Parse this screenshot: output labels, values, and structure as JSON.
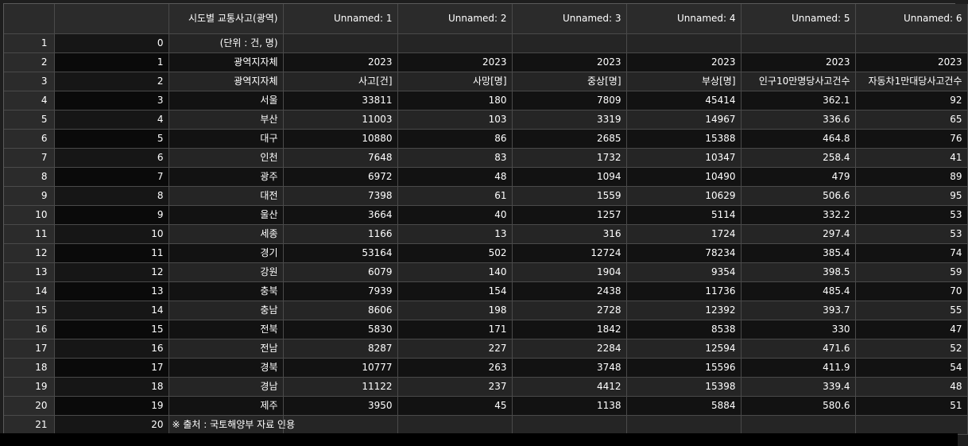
{
  "table": {
    "columns": [
      "",
      "시도별 교통사고(광역)",
      "Unnamed: 1",
      "Unnamed: 2",
      "Unnamed: 3",
      "Unnamed: 4",
      "Unnamed: 5",
      "Unnamed: 6"
    ],
    "rows": [
      {
        "num": "1",
        "cells": [
          "0",
          "(단위 : 건, 명)",
          "",
          "",
          "",
          "",
          "",
          ""
        ]
      },
      {
        "num": "2",
        "cells": [
          "1",
          "광역지자체",
          "2023",
          "2023",
          "2023",
          "2023",
          "2023",
          "2023"
        ]
      },
      {
        "num": "3",
        "cells": [
          "2",
          "광역지자체",
          "사고[건]",
          "사망[명]",
          "중상[명]",
          "부상[명]",
          "인구10만명당사고건수",
          "자동차1만대당사고건수"
        ]
      },
      {
        "num": "4",
        "cells": [
          "3",
          "서울",
          "33811",
          "180",
          "7809",
          "45414",
          "362.1",
          "92"
        ]
      },
      {
        "num": "5",
        "cells": [
          "4",
          "부산",
          "11003",
          "103",
          "3319",
          "14967",
          "336.6",
          "65"
        ]
      },
      {
        "num": "6",
        "cells": [
          "5",
          "대구",
          "10880",
          "86",
          "2685",
          "15388",
          "464.8",
          "76"
        ]
      },
      {
        "num": "7",
        "cells": [
          "6",
          "인천",
          "7648",
          "83",
          "1732",
          "10347",
          "258.4",
          "41"
        ]
      },
      {
        "num": "8",
        "cells": [
          "7",
          "광주",
          "6972",
          "48",
          "1094",
          "10490",
          "479",
          "89"
        ]
      },
      {
        "num": "9",
        "cells": [
          "8",
          "대전",
          "7398",
          "61",
          "1559",
          "10629",
          "506.6",
          "95"
        ]
      },
      {
        "num": "10",
        "cells": [
          "9",
          "울산",
          "3664",
          "40",
          "1257",
          "5114",
          "332.2",
          "53"
        ]
      },
      {
        "num": "11",
        "cells": [
          "10",
          "세종",
          "1166",
          "13",
          "316",
          "1724",
          "297.4",
          "53"
        ]
      },
      {
        "num": "12",
        "cells": [
          "11",
          "경기",
          "53164",
          "502",
          "12724",
          "78234",
          "385.4",
          "74"
        ]
      },
      {
        "num": "13",
        "cells": [
          "12",
          "강원",
          "6079",
          "140",
          "1904",
          "9354",
          "398.5",
          "59"
        ]
      },
      {
        "num": "14",
        "cells": [
          "13",
          "충북",
          "7939",
          "154",
          "2438",
          "11736",
          "485.4",
          "70"
        ]
      },
      {
        "num": "15",
        "cells": [
          "14",
          "충남",
          "8606",
          "198",
          "2728",
          "12392",
          "393.7",
          "55"
        ]
      },
      {
        "num": "16",
        "cells": [
          "15",
          "전북",
          "5830",
          "171",
          "1842",
          "8538",
          "330",
          "47"
        ]
      },
      {
        "num": "17",
        "cells": [
          "16",
          "전남",
          "8287",
          "227",
          "2284",
          "12594",
          "471.6",
          "52"
        ]
      },
      {
        "num": "18",
        "cells": [
          "17",
          "경북",
          "10777",
          "263",
          "3748",
          "15596",
          "411.9",
          "54"
        ]
      },
      {
        "num": "19",
        "cells": [
          "18",
          "경남",
          "11122",
          "237",
          "4412",
          "15398",
          "339.4",
          "48"
        ]
      },
      {
        "num": "20",
        "cells": [
          "19",
          "제주",
          "3950",
          "45",
          "1138",
          "5884",
          "580.6",
          "51"
        ]
      },
      {
        "num": "21",
        "cells": [
          "20",
          "※ 출처 : 국토해양부 자료 인용",
          "",
          "",
          "",
          "",
          "",
          ""
        ]
      }
    ]
  }
}
